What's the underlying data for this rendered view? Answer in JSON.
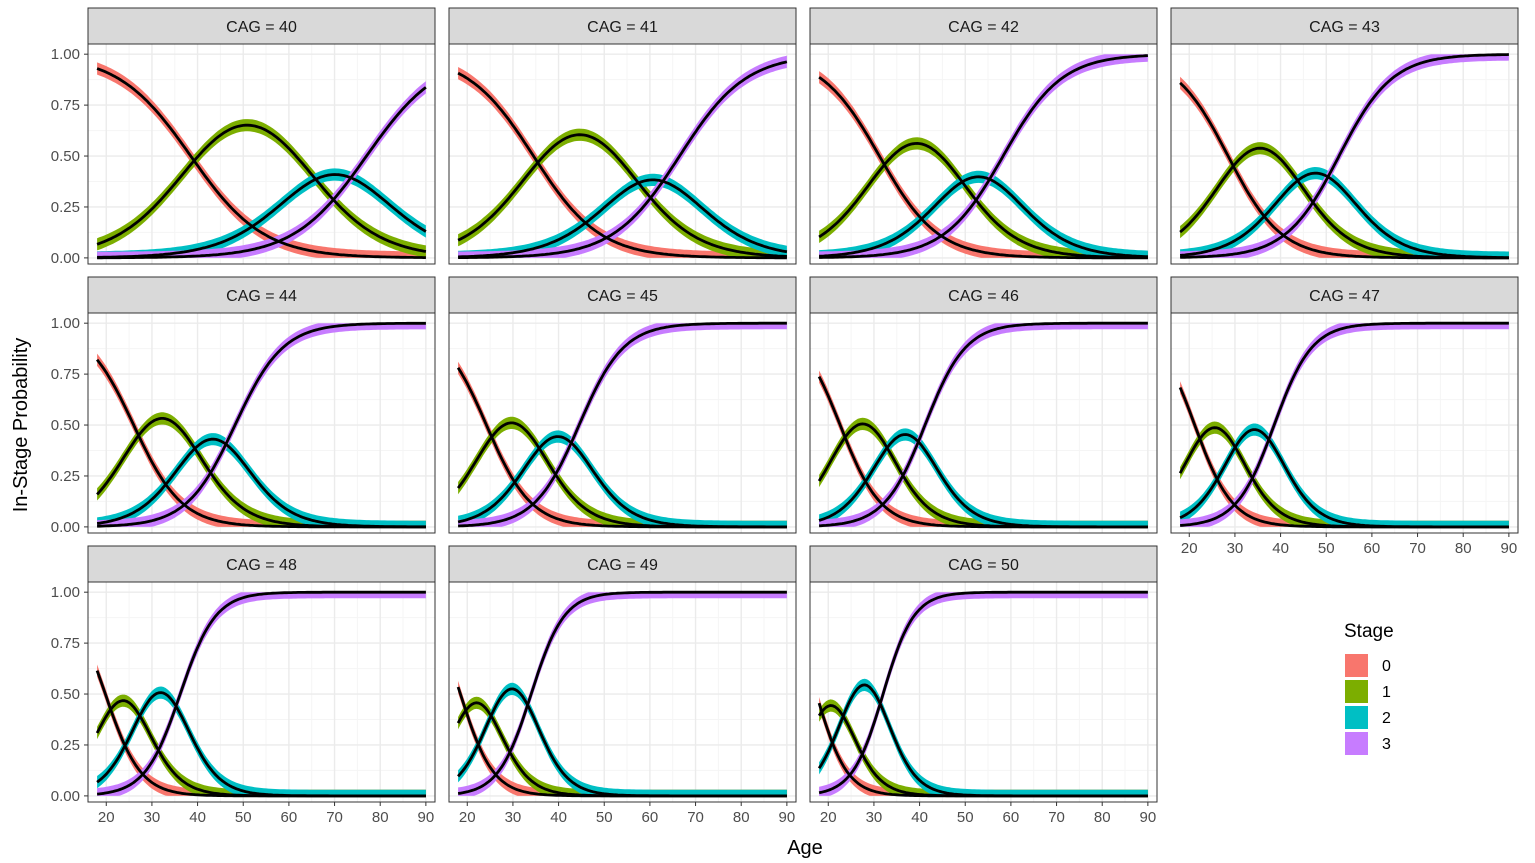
{
  "chart_data": {
    "type": "line",
    "xlabel": "Age",
    "ylabel": "In-Stage Probability",
    "xlim": [
      16,
      92
    ],
    "ylim": [
      -0.03,
      1.05
    ],
    "x_ticks": [
      20,
      30,
      40,
      50,
      60,
      70,
      80,
      90
    ],
    "y_ticks": [
      0.0,
      0.25,
      0.5,
      0.75,
      1.0
    ],
    "y_tick_labels": [
      "0.00",
      "0.25",
      "0.50",
      "0.75",
      "1.00"
    ],
    "grid": true,
    "facet_var": "CAG",
    "facet_label_prefix": "CAG = ",
    "facets": [
      40,
      41,
      42,
      43,
      44,
      45,
      46,
      47,
      48,
      49,
      50
    ],
    "x_range": [
      18,
      90
    ],
    "facet_params": {
      "40": {
        "t1": 38.5,
        "t2": 63.2,
        "t3": 77.0,
        "s": 0.126
      },
      "41": {
        "t1": 34.5,
        "t2": 54.8,
        "t3": 66.5,
        "s": 0.138
      },
      "42": {
        "t1": 31.2,
        "t2": 47.5,
        "t3": 58.3,
        "s": 0.156
      },
      "43": {
        "t1": 28.5,
        "t2": 42.5,
        "t3": 52.8,
        "s": 0.172
      },
      "44": {
        "t1": 26.0,
        "t2": 38.5,
        "t3": 48.2,
        "s": 0.19
      },
      "45": {
        "t1": 24.2,
        "t2": 35.2,
        "t3": 44.5,
        "s": 0.205
      },
      "46": {
        "t1": 22.6,
        "t2": 32.5,
        "t3": 41.2,
        "s": 0.225
      },
      "47": {
        "t1": 21.2,
        "t2": 30.0,
        "t3": 38.6,
        "s": 0.242
      },
      "48": {
        "t1": 19.8,
        "t2": 27.6,
        "t3": 36.2,
        "s": 0.26
      },
      "49": {
        "t1": 18.5,
        "t2": 25.6,
        "t3": 34.0,
        "s": 0.278
      },
      "50": {
        "t1": 17.4,
        "t2": 23.8,
        "t3": 32.0,
        "s": 0.298
      }
    },
    "legend": {
      "title": "Stage",
      "position": "right",
      "entries": [
        {
          "label": "0",
          "color": "#F8766D"
        },
        {
          "label": "1",
          "color": "#7CAE00"
        },
        {
          "label": "2",
          "color": "#00BFC4"
        },
        {
          "label": "3",
          "color": "#C77CFF"
        }
      ]
    },
    "line_color": "#000000",
    "band_width": 0.03
  },
  "colors": {
    "strip_fill": "#d9d9d9",
    "panel_border": "#333333",
    "grid_major": "#ebebeb",
    "grid_minor": "#f5f5f5"
  }
}
